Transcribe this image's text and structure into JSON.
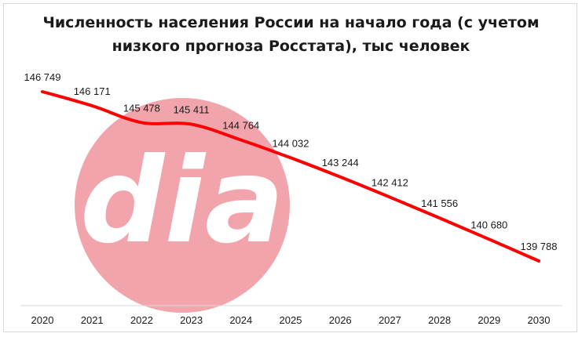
{
  "title": {
    "line1": "Численность населения России на начало года (с учетом",
    "line2": "низкого прогноза Росстата), тыс человек"
  },
  "watermark": {
    "text": "dia",
    "color": "#ef8f99"
  },
  "chart_data": {
    "type": "line",
    "title": "Численность населения России на начало года (с учетом низкого прогноза Росстата), тыс человек",
    "x": [
      "2020",
      "2021",
      "2022",
      "2023",
      "2024",
      "2025",
      "2026",
      "2027",
      "2028",
      "2029",
      "2030"
    ],
    "series": [
      {
        "values": [
          146749,
          146171,
          145478,
          145411,
          144764,
          144032,
          143244,
          142412,
          141556,
          140680,
          139788
        ],
        "labels": [
          "146 749",
          "146 171",
          "145 478",
          "145 411",
          "144 764",
          "144 032",
          "143 244",
          "142 412",
          "141 556",
          "140 680",
          "139 788"
        ],
        "color": "#ff0000"
      }
    ],
    "ylim": [
      139300,
      147300
    ],
    "grid": false,
    "legend": "none",
    "smooth": true
  }
}
